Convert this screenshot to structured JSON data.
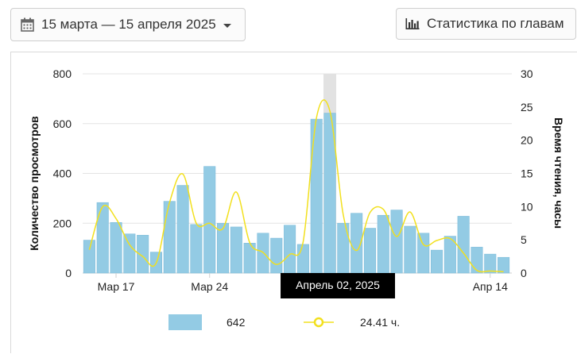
{
  "header": {
    "date_range_label": "15 марта — 15 апреля 2025",
    "chapter_stats_label": "Статистика по главам"
  },
  "chart_data": {
    "type": "bar+line",
    "x": [
      "2025-03-15",
      "2025-03-16",
      "2025-03-17",
      "2025-03-18",
      "2025-03-19",
      "2025-03-20",
      "2025-03-21",
      "2025-03-22",
      "2025-03-23",
      "2025-03-24",
      "2025-03-25",
      "2025-03-26",
      "2025-03-27",
      "2025-03-28",
      "2025-03-29",
      "2025-03-30",
      "2025-03-31",
      "2025-04-01",
      "2025-04-02",
      "2025-04-03",
      "2025-04-04",
      "2025-04-05",
      "2025-04-06",
      "2025-04-07",
      "2025-04-08",
      "2025-04-09",
      "2025-04-10",
      "2025-04-11",
      "2025-04-12",
      "2025-04-13",
      "2025-04-14",
      "2025-04-15"
    ],
    "x_tick_labels": [
      "Мар 17",
      "Мар 24",
      "Апр",
      "Апр 14"
    ],
    "series": [
      {
        "type": "bar",
        "axis": "left",
        "color": "#93cbe4",
        "values": [
          132,
          283,
          203,
          157,
          152,
          84,
          288,
          352,
          195,
          428,
          200,
          185,
          120,
          160,
          140,
          192,
          115,
          618,
          642,
          200,
          240,
          180,
          232,
          253,
          188,
          160,
          92,
          148,
          228,
          104,
          76,
          63
        ]
      },
      {
        "type": "line",
        "axis": "right",
        "color": "#f2e01e",
        "values": [
          3.5,
          10.0,
          8.2,
          4.3,
          2.5,
          1.5,
          10.6,
          14.9,
          7.5,
          7.5,
          6.7,
          12.2,
          4.6,
          3.1,
          1.3,
          2.8,
          4.7,
          23.4,
          24.41,
          8.8,
          3.4,
          9.1,
          9.6,
          5.5,
          9.2,
          4.3,
          4.9,
          5.2,
          3.0,
          0.4,
          0.3,
          0.2
        ]
      }
    ],
    "y_left": {
      "label": "Количество просмотров",
      "min": 0,
      "max": 800,
      "ticks": [
        0,
        200,
        400,
        600,
        800
      ]
    },
    "y_right": {
      "label": "Время чтения, часы",
      "min": 0,
      "max": 30,
      "ticks": [
        0,
        5,
        10,
        15,
        20,
        25,
        30
      ]
    },
    "grid": true,
    "hover": {
      "index": 18,
      "tooltip": "Апрель 02, 2025",
      "bar_value": "642",
      "line_value": "24.41 ч."
    },
    "legend_placement": "bottom"
  }
}
